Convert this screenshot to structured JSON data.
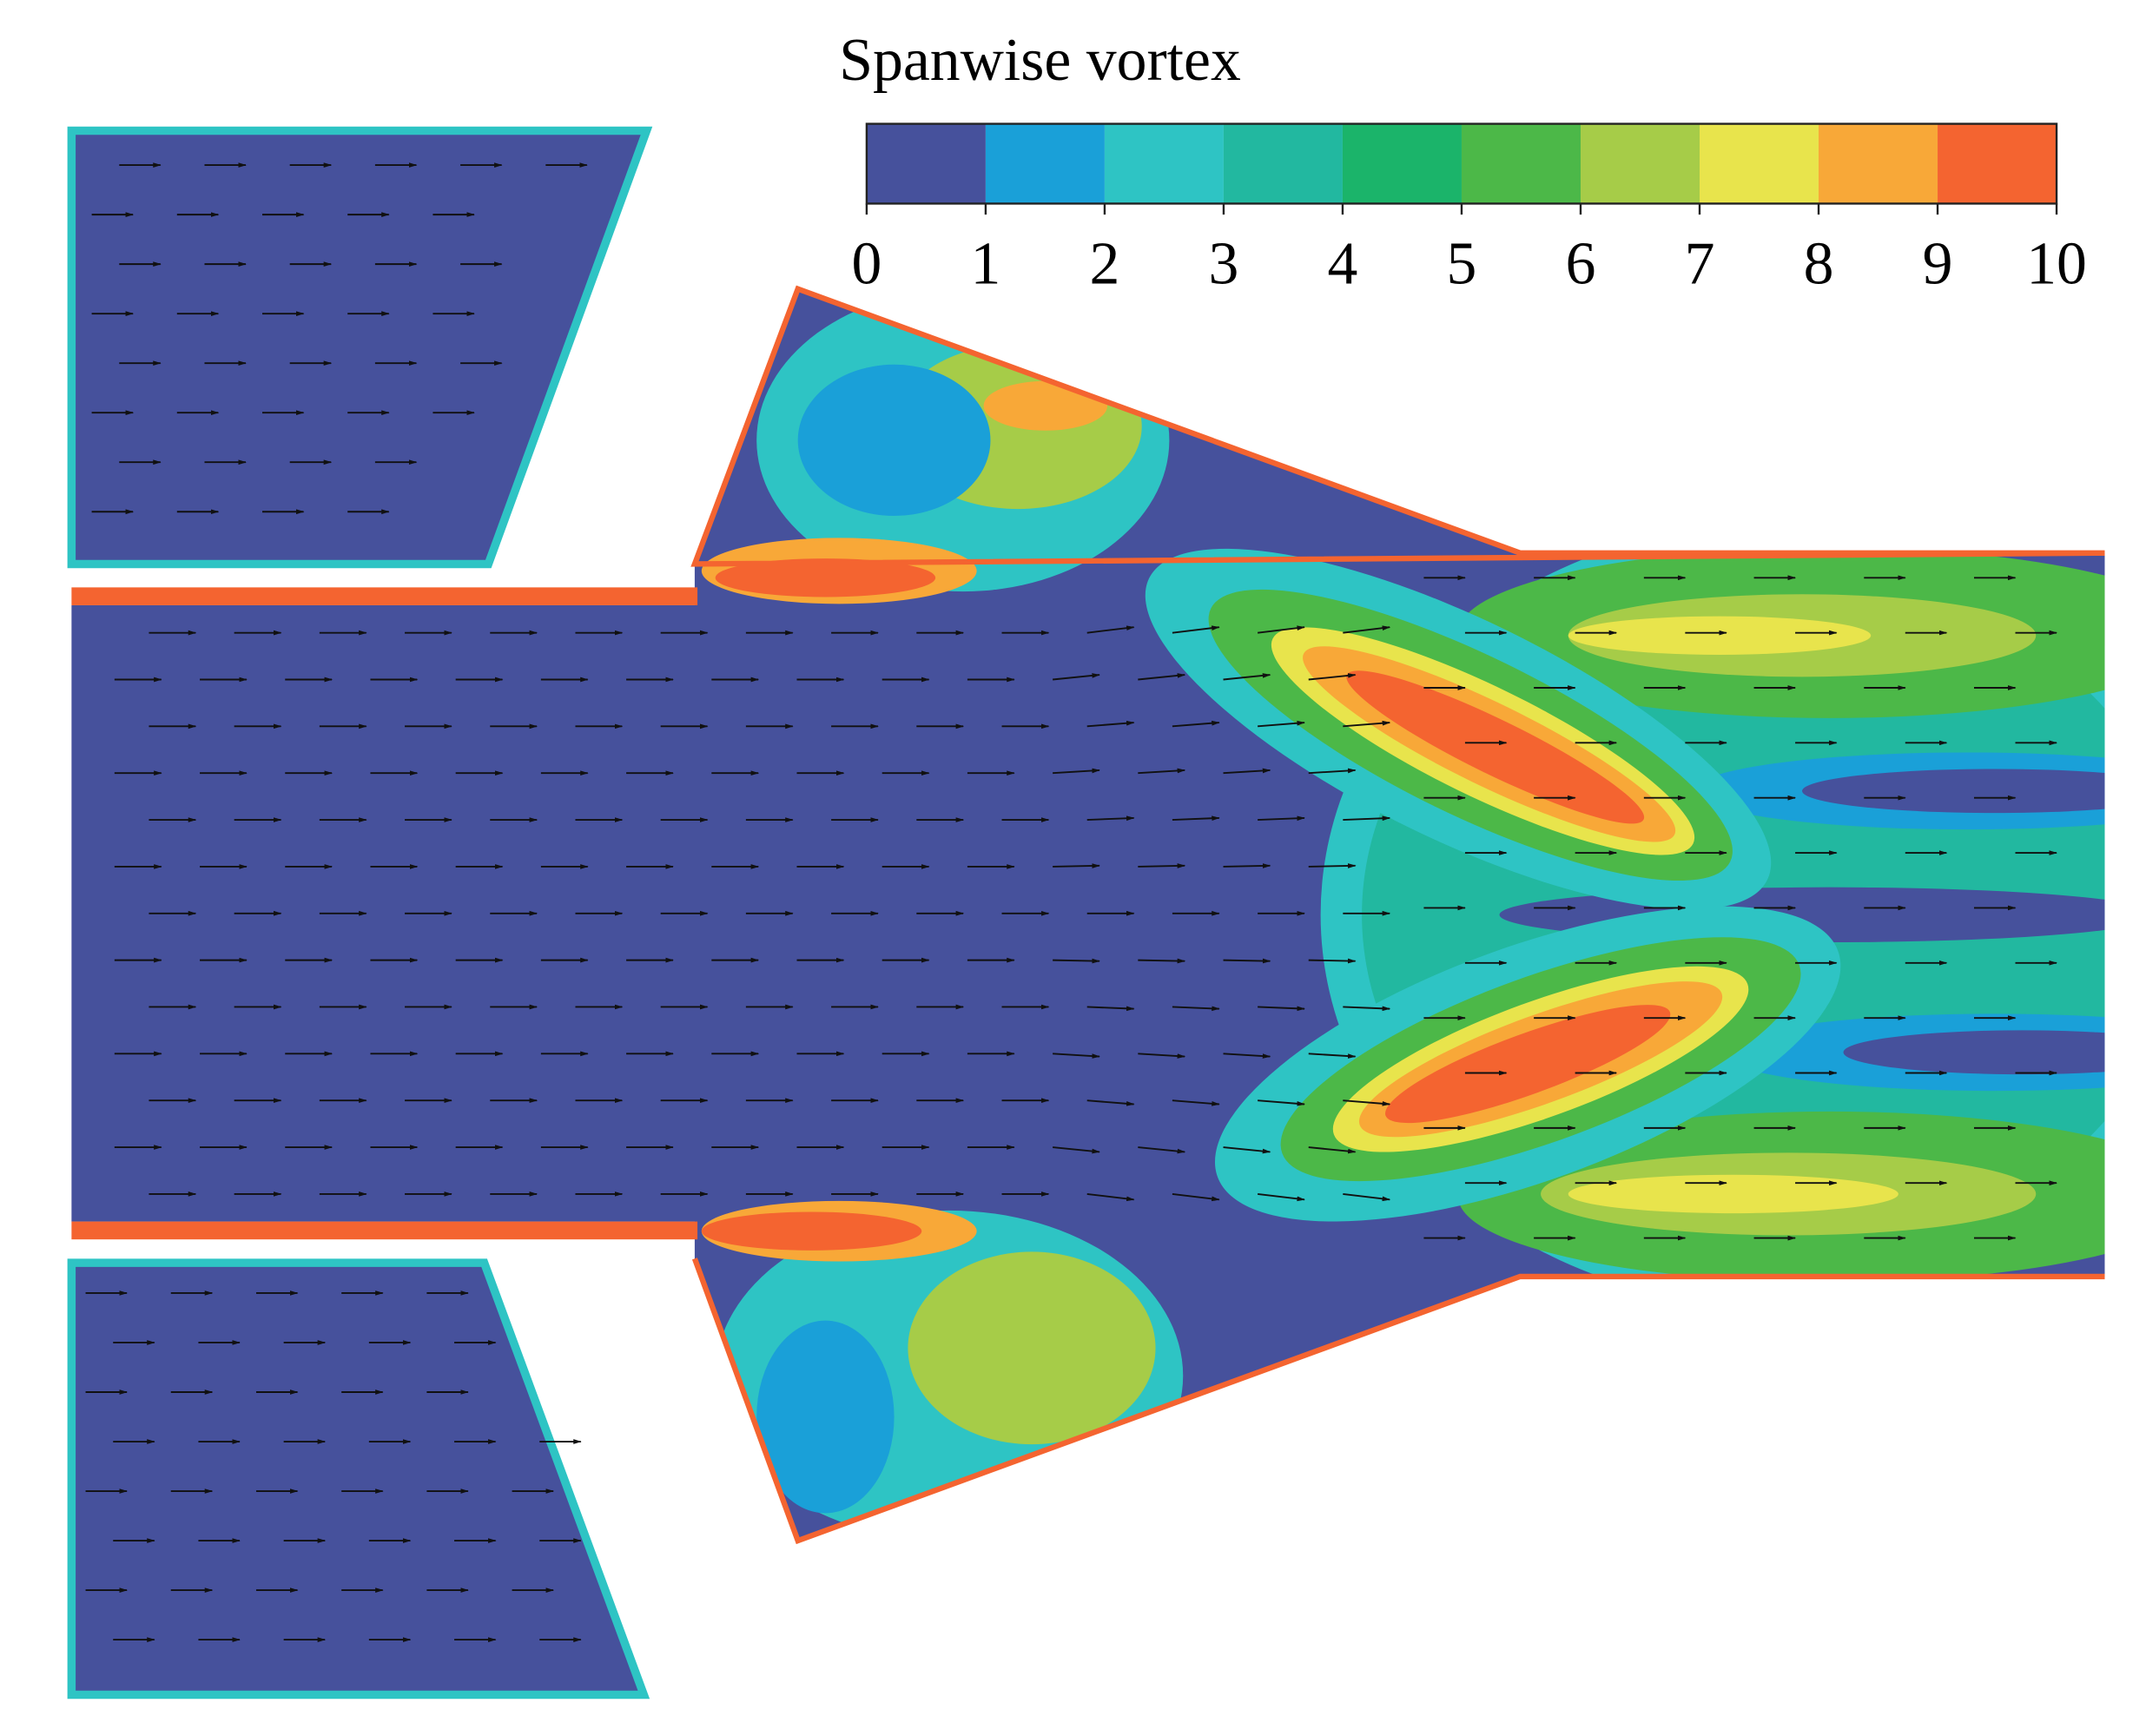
{
  "chart_data": {
    "type": "contour",
    "colorbar": {
      "title": "Spanwise vortex",
      "ticks": [
        0,
        1,
        2,
        3,
        4,
        5,
        6,
        7,
        8,
        9,
        10
      ],
      "colors": [
        "#46519c",
        "#1aa0d8",
        "#2ec4c4",
        "#22b8a0",
        "#1bb46a",
        "#4cb848",
        "#a6cc48",
        "#e8e44c",
        "#f8a838",
        "#f46430"
      ]
    }
  }
}
